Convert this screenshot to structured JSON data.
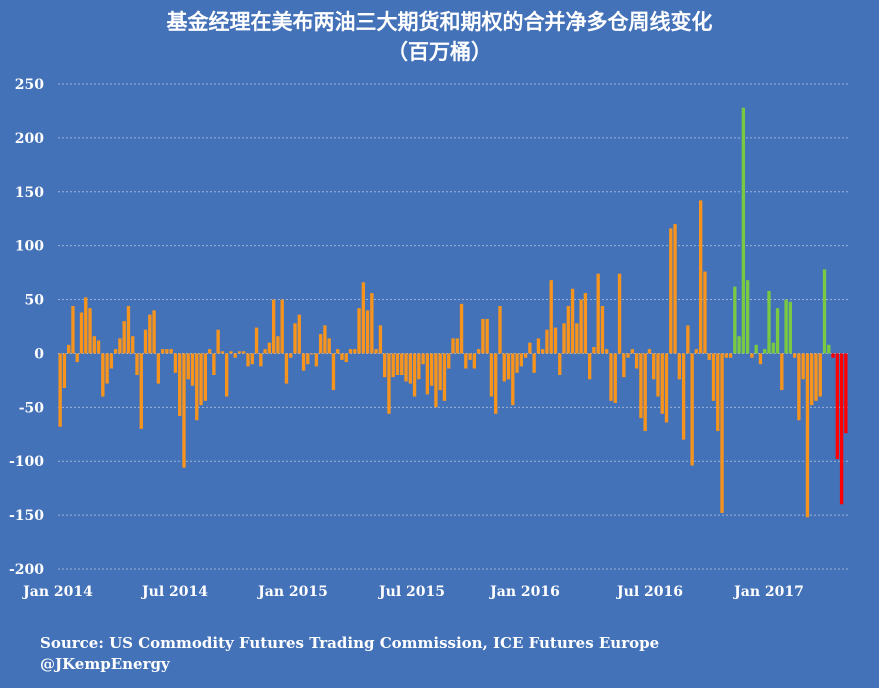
{
  "chart_data": {
    "type": "bar",
    "title": "基金经理在美布两油三大期货和期权的合并净多仓周线变化",
    "subtitle": "（百万桶）",
    "xlabel": "",
    "ylabel": "",
    "ylim": [
      -200,
      250
    ],
    "yticks": [
      "250",
      "200",
      "150",
      "100",
      "50",
      "0",
      "-50",
      "-100",
      "-150",
      "-200"
    ],
    "xticks": [
      "Jan 2014",
      "Jul 2014",
      "Jan 2015",
      "Jul 2015",
      "Jan 2016",
      "Jul 2016",
      "Jan 2017"
    ],
    "grid": true,
    "colors": {
      "background": "#4472b8",
      "grid": "#9db3d6",
      "base": "#f7941d",
      "positive_highlight": "#7ac943",
      "negative_highlight": "#ff0000"
    },
    "series": [
      {
        "values": [
          -68,
          -32,
          8,
          44,
          -8,
          38,
          52,
          42,
          16,
          12,
          -40,
          -28,
          -14,
          4,
          14,
          30,
          44,
          16,
          -20,
          -70,
          22,
          36,
          40,
          -28,
          4,
          4,
          4,
          -18,
          -58,
          -106,
          -24,
          -30,
          -62,
          -48,
          -44,
          4,
          -20,
          22,
          2,
          -40,
          2,
          -4,
          2,
          2,
          -12,
          -10,
          24,
          -12,
          4,
          10,
          50,
          16,
          50,
          -28,
          -4,
          28,
          36,
          -16,
          -10,
          0,
          -12,
          18,
          26,
          14,
          -34,
          4,
          -6,
          -8,
          4,
          4,
          42,
          66,
          40,
          56,
          4,
          26,
          -22,
          -56,
          -22,
          -20,
          -20,
          -26,
          -28,
          -40,
          -24,
          -10,
          -38,
          -30,
          -50,
          -34,
          -44,
          -14,
          14,
          14,
          46,
          -14,
          -6,
          -14,
          4,
          32,
          32,
          -40,
          -56,
          44,
          -26,
          -24,
          -48,
          -18,
          -12,
          -4,
          10,
          -18,
          14,
          4,
          22,
          68,
          24,
          -20,
          28,
          44,
          60,
          28,
          50,
          56,
          -24,
          6,
          74,
          44,
          4,
          -44,
          -46,
          74,
          -22,
          -4,
          4,
          -14,
          -60,
          -72,
          4,
          -24,
          -40,
          -56,
          -64,
          116,
          120,
          -24,
          -80,
          26,
          -104,
          4,
          142,
          76,
          -6,
          -44,
          -72,
          -148,
          -4,
          -4,
          62,
          16,
          228,
          68,
          -4,
          8,
          -10,
          4,
          58,
          10,
          42,
          -34,
          50,
          48,
          -4,
          -62,
          -24,
          -152,
          -48,
          -44,
          -40,
          78,
          8,
          -4,
          -98,
          -140,
          -74
        ],
        "highlight": {
          "green_weeks": "Nov 2016 - Feb 2017 positive changes",
          "red_weeks": "Mar 2017 onward negative changes"
        }
      }
    ]
  },
  "source_line1": "Source: US Commodity Futures Trading Commission, ICE Futures Europe",
  "source_line2": "@JKempEnergy"
}
